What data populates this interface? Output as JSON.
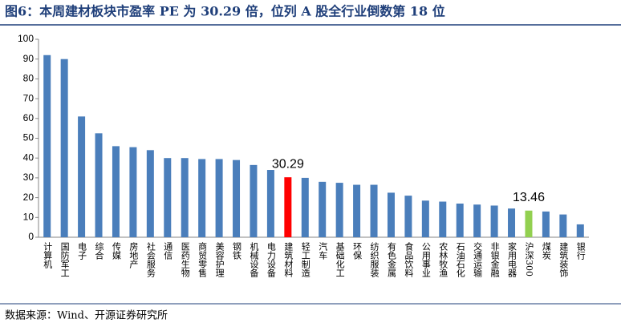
{
  "chart_data": {
    "type": "bar",
    "title": "图6：本周建材板块市盈率 PE 为 30.29 倍，位列 A 股全行业倒数第 18 位",
    "source": "数据来源：Wind、开源证券研究所",
    "categories": [
      "计算机",
      "国防军工",
      "电子",
      "综合",
      "传媒",
      "房地产",
      "社会服务",
      "通信",
      "医药生物",
      "商贸零售",
      "美容护理",
      "钢铁",
      "机械设备",
      "电力设备",
      "建筑材料",
      "轻工制造",
      "汽车",
      "基础化工",
      "环保",
      "纺织服装",
      "有色金属",
      "食品饮料",
      "公用事业",
      "农林牧渔",
      "石油石化",
      "交通运输",
      "非银金融",
      "家用电器",
      "沪深300",
      "煤炭",
      "建筑装饰",
      "银行"
    ],
    "values": [
      92,
      90,
      61,
      52.5,
      46,
      45.5,
      44,
      40,
      40,
      39.5,
      39.5,
      39,
      36.5,
      34,
      30.29,
      30,
      28,
      27.5,
      26.5,
      26.5,
      22.5,
      21,
      18.5,
      18,
      17,
      16.5,
      16,
      14.5,
      13.46,
      13,
      11.5,
      6.5
    ],
    "value_labels": [
      null,
      null,
      null,
      null,
      null,
      null,
      null,
      null,
      null,
      null,
      null,
      null,
      null,
      null,
      "30.29",
      null,
      null,
      null,
      null,
      null,
      null,
      null,
      null,
      null,
      null,
      null,
      null,
      null,
      "13.46",
      null,
      null,
      null
    ],
    "colors": [
      "#4a7ebb",
      "#4a7ebb",
      "#4a7ebb",
      "#4a7ebb",
      "#4a7ebb",
      "#4a7ebb",
      "#4a7ebb",
      "#4a7ebb",
      "#4a7ebb",
      "#4a7ebb",
      "#4a7ebb",
      "#4a7ebb",
      "#4a7ebb",
      "#4a7ebb",
      "#ff0000",
      "#4a7ebb",
      "#4a7ebb",
      "#4a7ebb",
      "#4a7ebb",
      "#4a7ebb",
      "#4a7ebb",
      "#4a7ebb",
      "#4a7ebb",
      "#4a7ebb",
      "#4a7ebb",
      "#4a7ebb",
      "#4a7ebb",
      "#4a7ebb",
      "#92d050",
      "#4a7ebb",
      "#4a7ebb",
      "#4a7ebb"
    ],
    "ylim": [
      0,
      100
    ],
    "yticks": [
      0,
      10,
      20,
      30,
      40,
      50,
      60,
      70,
      80,
      90,
      100
    ],
    "grid": false
  }
}
